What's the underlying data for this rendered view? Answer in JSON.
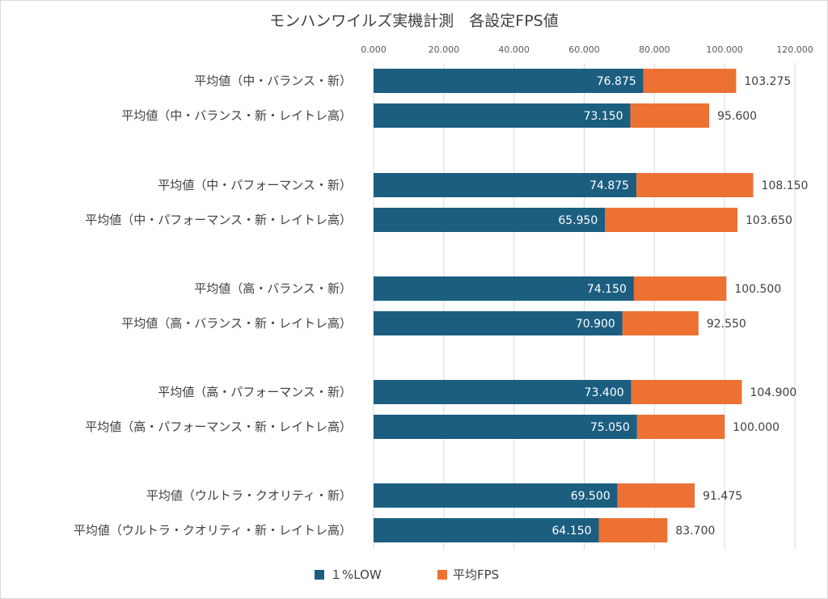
{
  "chart_data": {
    "type": "bar",
    "orientation": "horizontal",
    "title": "モンハンワイルズ実機計測　各設定FPS値",
    "xlim": [
      0,
      120
    ],
    "xticks": [
      "0.000",
      "20.000",
      "40.000",
      "60.000",
      "80.000",
      "100.000",
      "120.000"
    ],
    "grid": true,
    "legend_position": "bottom",
    "categories": [
      "平均値（中・バランス・新）",
      "平均値（中・バランス・新・レイトレ高）",
      "平均値（中・パフォーマンス・新）",
      "平均値（中・パフォーマンス・新・レイトレ高）",
      "平均値（高・バランス・新）",
      "平均値（高・バランス・新・レイトレ高）",
      "平均値（高・パフォーマンス・新）",
      "平均値（高・パフォーマンス・新・レイトレ高）",
      "平均値（ウルトラ・クオリティ・新）",
      "平均値（ウルトラ・クオリティ・新・レイトレ高）"
    ],
    "series": [
      {
        "name": "１%LOW",
        "color": "#1b5e80",
        "values": [
          76.875,
          73.15,
          74.875,
          65.95,
          74.15,
          70.9,
          73.4,
          75.05,
          69.5,
          64.15
        ],
        "labels": [
          "76.875",
          "73.150",
          "74.875",
          "65.950",
          "74.150",
          "70.900",
          "73.400",
          "75.050",
          "69.500",
          "64.150"
        ]
      },
      {
        "name": "平均FPS",
        "color": "#ec7133",
        "values": [
          103.275,
          95.6,
          108.15,
          103.65,
          100.5,
          92.55,
          104.9,
          100.0,
          91.475,
          83.7
        ],
        "labels": [
          "103.275",
          "95.600",
          "108.150",
          "103.650",
          "100.500",
          "92.550",
          "104.900",
          "100.000",
          "91.475",
          "83.700"
        ]
      }
    ]
  }
}
